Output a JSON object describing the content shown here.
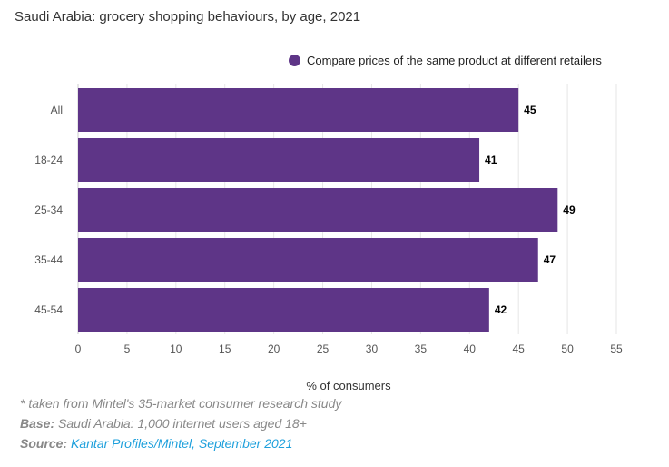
{
  "chart_data": {
    "type": "bar",
    "orientation": "horizontal",
    "title": "Saudi Arabia: grocery shopping behaviours, by age, 2021",
    "categories": [
      "All",
      "18-24",
      "25-34",
      "35-44",
      "45-54"
    ],
    "series": [
      {
        "name": "Compare prices of the same product at different retailers",
        "values": [
          45,
          41,
          49,
          47,
          42
        ],
        "color": "#5e3587"
      }
    ],
    "xlabel": "% of consumers",
    "ylabel": "",
    "xlim": [
      0,
      55
    ],
    "xticks": [
      0,
      5,
      10,
      15,
      20,
      25,
      30,
      35,
      40,
      45,
      50,
      55
    ],
    "grid": true,
    "legend": "top-right",
    "data_labels": true
  },
  "footer": {
    "note": "* taken from Mintel's 35-market consumer research study",
    "base_label": "Base:",
    "base_text": "Saudi Arabia: 1,000 internet users aged 18+",
    "source_label": "Source:",
    "source_link": "Kantar Profiles/Mintel, September 2021",
    "link_color": "#1ea0dc"
  }
}
